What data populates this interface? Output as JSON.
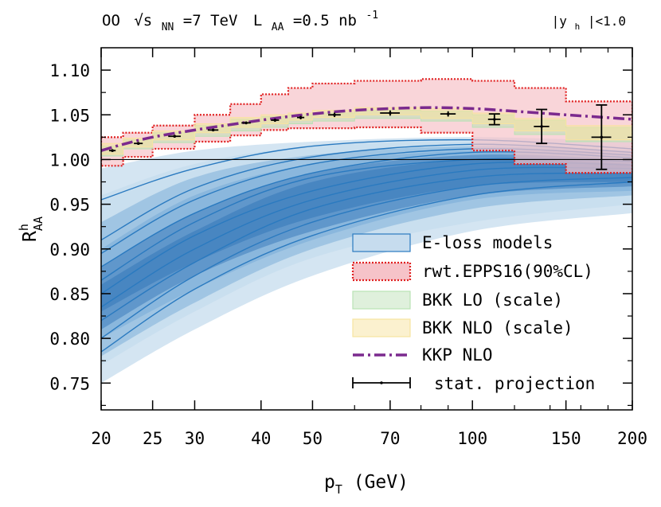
{
  "header": {
    "left_text": "OO √s NN=7 TeV L AA=0.5 nb⁻¹",
    "collision": "OO",
    "sqrt_s": "√s",
    "nn_sub": "NN",
    "energy": "=7 TeV",
    "lumi_symbol": "L",
    "lumi_sub": "AA",
    "lumi_value": "=0.5 nb",
    "lumi_exp": "-1",
    "right_text": "|y h|<1.0",
    "rap_left": "|y",
    "rap_sub": "h",
    "rap_right": "|<1.0"
  },
  "colors": {
    "eloss_light": "#c6dcee",
    "eloss_mid": "#6fa6d4",
    "eloss_dark": "#2c72b5",
    "eloss_line": "#2a7ac0",
    "epps_fill": "#f6c3c9",
    "epps_border": "#e02020",
    "bkk_lo": "#b9e2b4",
    "bkk_nlo": "#f7e4a0",
    "kkp": "#7b2a8e",
    "stat": "#000000"
  },
  "chart_data": {
    "type": "line",
    "xscale": "log",
    "xlim": [
      20,
      200
    ],
    "ylim": [
      0.72,
      1.125
    ],
    "xticks": [
      20,
      25,
      30,
      40,
      50,
      70,
      100,
      150,
      200
    ],
    "xtick_labels": [
      "20",
      "25",
      "30",
      "40",
      "50",
      "70",
      "100",
      "150",
      "200"
    ],
    "yticks": [
      0.75,
      0.8,
      0.85,
      0.9,
      0.95,
      1.0,
      1.05,
      1.1
    ],
    "ytick_labels": [
      "0.75",
      "0.80",
      "0.85",
      "0.90",
      "0.95",
      "1.00",
      "1.05",
      "1.10"
    ],
    "xlabel": "p_T (GeV)",
    "xlabel_main": "p",
    "xlabel_sub": "T",
    "xlabel_rest": " (GeV)",
    "ylabel": "R^h_AA",
    "ylabel_main": "R",
    "ylabel_sup": "h",
    "ylabel_sub": "AA",
    "reference_line": 1.0,
    "legend_position": "bottom-right",
    "legend": [
      {
        "key": "eloss",
        "label": "E-loss models"
      },
      {
        "key": "epps",
        "label": "rwt.EPPS16(90%CL)"
      },
      {
        "key": "bkk_lo",
        "label": "BKK LO (scale)"
      },
      {
        "key": "bkk_nlo",
        "label": "BKK NLO (scale)"
      },
      {
        "key": "kkp",
        "label": "KKP NLO"
      },
      {
        "key": "stat",
        "label": "stat. projection"
      }
    ],
    "bins": [
      20,
      22,
      25,
      30,
      35,
      40,
      45,
      50,
      60,
      80,
      100,
      120,
      150,
      200
    ],
    "epps_upper": [
      1.025,
      1.03,
      1.038,
      1.05,
      1.062,
      1.073,
      1.08,
      1.085,
      1.088,
      1.09,
      1.088,
      1.08,
      1.065
    ],
    "epps_lower": [
      0.993,
      1.003,
      1.012,
      1.02,
      1.027,
      1.033,
      1.035,
      1.035,
      1.036,
      1.03,
      1.01,
      0.995,
      0.985
    ],
    "bkk_lo_upper": [
      1.015,
      1.022,
      1.03,
      1.038,
      1.045,
      1.048,
      1.05,
      1.052,
      1.055,
      1.054,
      1.05,
      1.044,
      1.036
    ],
    "bkk_lo_lower": [
      1.004,
      1.012,
      1.019,
      1.026,
      1.032,
      1.036,
      1.04,
      1.043,
      1.046,
      1.043,
      1.036,
      1.028,
      1.02
    ],
    "bkk_nlo_upper": [
      1.018,
      1.024,
      1.032,
      1.04,
      1.047,
      1.05,
      1.052,
      1.055,
      1.058,
      1.057,
      1.052,
      1.046,
      1.038
    ],
    "bkk_nlo_lower": [
      1.006,
      1.014,
      1.022,
      1.03,
      1.036,
      1.04,
      1.044,
      1.047,
      1.05,
      1.046,
      1.04,
      1.032,
      1.022
    ],
    "kkp_nlo": {
      "x": [
        20,
        22,
        25,
        30,
        35,
        40,
        45,
        50,
        60,
        80,
        100,
        120,
        150,
        200
      ],
      "y": [
        1.01,
        1.017,
        1.025,
        1.033,
        1.039,
        1.044,
        1.048,
        1.051,
        1.055,
        1.058,
        1.057,
        1.054,
        1.05,
        1.045
      ]
    },
    "stat_projection": {
      "x": [
        21,
        23.5,
        27.5,
        32.5,
        37.5,
        42.5,
        47.5,
        55,
        70,
        90,
        110,
        135,
        175
      ],
      "y": [
        1.01,
        1.018,
        1.026,
        1.033,
        1.041,
        1.044,
        1.047,
        1.05,
        1.052,
        1.051,
        1.045,
        1.037,
        1.025
      ],
      "err": [
        0.0008,
        0.001,
        0.001,
        0.0012,
        0.0015,
        0.0018,
        0.002,
        0.0025,
        0.003,
        0.003,
        0.006,
        0.019,
        0.036
      ],
      "xerr": [
        1,
        1.5,
        2.5,
        2.5,
        2.5,
        2.5,
        2.5,
        5,
        10,
        10,
        10,
        15,
        25
      ]
    },
    "eloss_bands": [
      {
        "tier": "light",
        "x": [
          20,
          30,
          50,
          100,
          200
        ],
        "upper": [
          0.99,
          1.01,
          1.02,
          1.025,
          1.02
        ],
        "lower": [
          0.75,
          0.81,
          0.87,
          0.92,
          0.94
        ]
      },
      {
        "tier": "light",
        "x": [
          20,
          30,
          50,
          100,
          200
        ],
        "upper": [
          0.96,
          0.995,
          1.015,
          1.02,
          1.015
        ],
        "lower": [
          0.77,
          0.83,
          0.89,
          0.93,
          0.95
        ]
      },
      {
        "tier": "mid",
        "x": [
          20,
          30,
          50,
          100,
          200
        ],
        "upper": [
          0.93,
          0.98,
          1.005,
          1.015,
          1.01
        ],
        "lower": [
          0.78,
          0.84,
          0.9,
          0.945,
          0.96
        ]
      },
      {
        "tier": "mid",
        "x": [
          20,
          30,
          50,
          100,
          200
        ],
        "upper": [
          0.9,
          0.96,
          0.995,
          1.01,
          1.005
        ],
        "lower": [
          0.8,
          0.855,
          0.91,
          0.955,
          0.965
        ]
      },
      {
        "tier": "dark",
        "x": [
          20,
          30,
          50,
          100,
          200
        ],
        "upper": [
          0.88,
          0.94,
          0.985,
          1.005,
          1.0
        ],
        "lower": [
          0.81,
          0.87,
          0.92,
          0.96,
          0.97
        ]
      },
      {
        "tier": "dark",
        "x": [
          20,
          30,
          50,
          100,
          200
        ],
        "upper": [
          0.86,
          0.92,
          0.975,
          1.0,
          0.995
        ],
        "lower": [
          0.83,
          0.885,
          0.935,
          0.97,
          0.975
        ]
      }
    ],
    "eloss_lines": [
      {
        "x": [
          20,
          30,
          50,
          100,
          200
        ],
        "y": [
          0.955,
          0.99,
          1.015,
          1.022,
          1.012
        ]
      },
      {
        "x": [
          20,
          30,
          50,
          100,
          200
        ],
        "y": [
          0.91,
          0.968,
          1.003,
          1.017,
          1.008
        ]
      },
      {
        "x": [
          20,
          30,
          50,
          100,
          200
        ],
        "y": [
          0.895,
          0.955,
          0.995,
          1.012,
          1.005
        ]
      },
      {
        "x": [
          20,
          30,
          50,
          100,
          200
        ],
        "y": [
          0.88,
          0.94,
          0.985,
          1.008,
          1.002
        ]
      },
      {
        "x": [
          20,
          30,
          50,
          100,
          200
        ],
        "y": [
          0.865,
          0.93,
          0.98,
          1.0,
          0.998
        ]
      },
      {
        "x": [
          20,
          30,
          50,
          100,
          200
        ],
        "y": [
          0.85,
          0.915,
          0.965,
          0.995,
          0.994
        ]
      },
      {
        "x": [
          20,
          30,
          50,
          100,
          200
        ],
        "y": [
          0.835,
          0.9,
          0.955,
          0.988,
          0.99
        ]
      },
      {
        "x": [
          20,
          30,
          50,
          100,
          200
        ],
        "y": [
          0.82,
          0.885,
          0.945,
          0.98,
          0.985
        ]
      },
      {
        "x": [
          20,
          30,
          50,
          100,
          200
        ],
        "y": [
          0.8,
          0.87,
          0.93,
          0.97,
          0.98
        ]
      },
      {
        "x": [
          20,
          30,
          50,
          100,
          200
        ],
        "y": [
          0.785,
          0.855,
          0.915,
          0.96,
          0.975
        ]
      }
    ]
  }
}
